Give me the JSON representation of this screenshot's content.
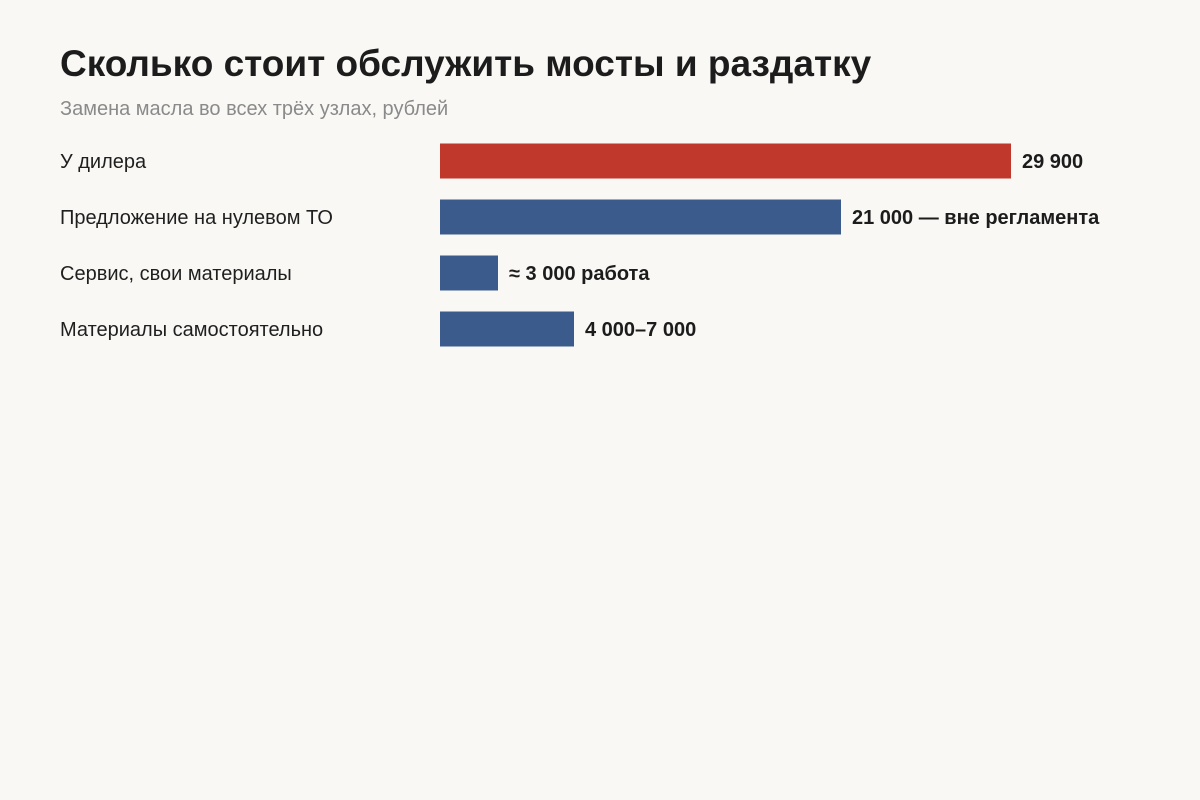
{
  "chart_data": {
    "type": "bar",
    "orientation": "horizontal",
    "title": "Сколько стоит обслужить мосты и раздатку",
    "subtitle": "Замена масла во всех трёх узлах, рублей",
    "categories": [
      "У дилера",
      "Предложение на нулевом ТО",
      "Сервис, свои материалы",
      "Материалы самостоятельно"
    ],
    "values": [
      29900,
      21000,
      3000,
      7000
    ],
    "value_labels": [
      "29 900",
      "21 000 — вне регламента",
      "≈ 3 000 работа",
      "4 000–7 000"
    ],
    "colors": [
      "#c0372c",
      "#3b5b8c",
      "#3b5b8c",
      "#3b5b8c"
    ],
    "xlim": [
      0,
      30000
    ],
    "grid": false,
    "legend": false
  }
}
